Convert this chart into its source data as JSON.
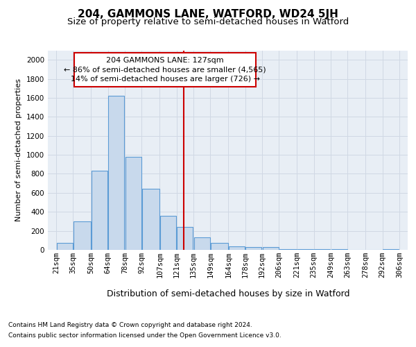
{
  "title": "204, GAMMONS LANE, WATFORD, WD24 5JH",
  "subtitle": "Size of property relative to semi-detached houses in Watford",
  "xlabel": "Distribution of semi-detached houses by size in Watford",
  "ylabel": "Number of semi-detached properties",
  "footer_line1": "Contains HM Land Registry data © Crown copyright and database right 2024.",
  "footer_line2": "Contains public sector information licensed under the Open Government Licence v3.0.",
  "annotation_line1": "204 GAMMONS LANE: 127sqm",
  "annotation_line2": "← 86% of semi-detached houses are smaller (4,565)",
  "annotation_line3": "14% of semi-detached houses are larger (726) →",
  "property_size": 127,
  "bar_left_edges": [
    21,
    35,
    50,
    64,
    78,
    92,
    107,
    121,
    135,
    149,
    164,
    178,
    192,
    206,
    221,
    235,
    249,
    263,
    278,
    292
  ],
  "bar_widths": [
    14,
    15,
    14,
    14,
    14,
    15,
    14,
    14,
    14,
    15,
    14,
    14,
    14,
    15,
    14,
    14,
    14,
    15,
    14,
    14
  ],
  "bar_heights": [
    70,
    300,
    830,
    1620,
    980,
    640,
    360,
    240,
    130,
    70,
    35,
    30,
    30,
    10,
    8,
    5,
    5,
    0,
    0,
    10
  ],
  "tick_labels": [
    "21sqm",
    "35sqm",
    "50sqm",
    "64sqm",
    "78sqm",
    "92sqm",
    "107sqm",
    "121sqm",
    "135sqm",
    "149sqm",
    "164sqm",
    "178sqm",
    "192sqm",
    "206sqm",
    "221sqm",
    "235sqm",
    "249sqm",
    "263sqm",
    "278sqm",
    "292sqm",
    "306sqm"
  ],
  "tick_positions": [
    21,
    35,
    50,
    64,
    78,
    92,
    107,
    121,
    135,
    149,
    164,
    178,
    192,
    206,
    221,
    235,
    249,
    263,
    278,
    292,
    306
  ],
  "ylim": [
    0,
    2100
  ],
  "yticks": [
    0,
    200,
    400,
    600,
    800,
    1000,
    1200,
    1400,
    1600,
    1800,
    2000
  ],
  "bar_color": "#c8d9ec",
  "bar_edge_color": "#5b9bd5",
  "vline_x": 127,
  "vline_color": "#cc0000",
  "grid_color": "#d0d8e4",
  "bg_color": "#e8eef5",
  "annotation_box_color": "#cc0000",
  "title_fontsize": 11,
  "subtitle_fontsize": 9.5,
  "xlabel_fontsize": 9,
  "ylabel_fontsize": 8,
  "tick_fontsize": 7.5,
  "annotation_fontsize": 8,
  "footer_fontsize": 6.5,
  "xlim_left": 14,
  "xlim_right": 313
}
